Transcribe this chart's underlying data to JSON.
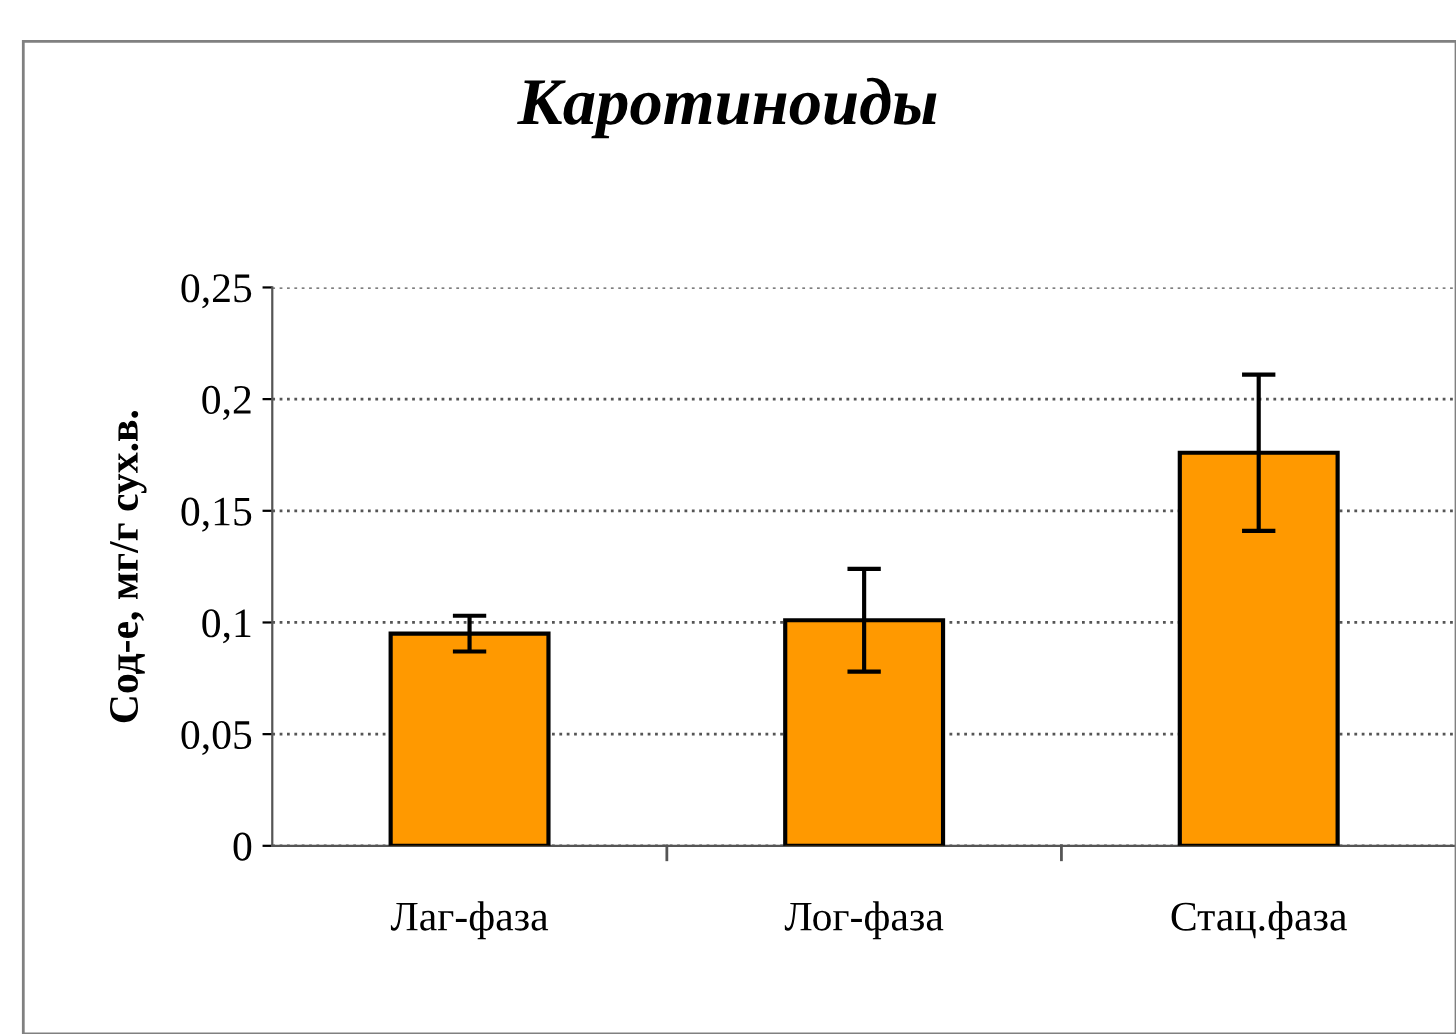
{
  "chart_data": {
    "type": "bar",
    "title": "Каротиноиды",
    "ylabel": "Сод-е, мг/г сух.в.",
    "categories": [
      "Лаг-фаза",
      "Лог-фаза",
      "Стац.фаза"
    ],
    "values": [
      0.095,
      0.101,
      0.176
    ],
    "errors": [
      0.008,
      0.023,
      0.035
    ],
    "color": "#ff9900",
    "ylim": [
      0,
      0.25
    ],
    "yticks": [
      {
        "value": 0,
        "label": "0"
      },
      {
        "value": 0.05,
        "label": "0,05"
      },
      {
        "value": 0.1,
        "label": "0,1"
      },
      {
        "value": 0.15,
        "label": "0,15"
      },
      {
        "value": 0.2,
        "label": "0,2"
      },
      {
        "value": 0.25,
        "label": "0,25"
      }
    ],
    "grid": "y",
    "legend": false
  }
}
